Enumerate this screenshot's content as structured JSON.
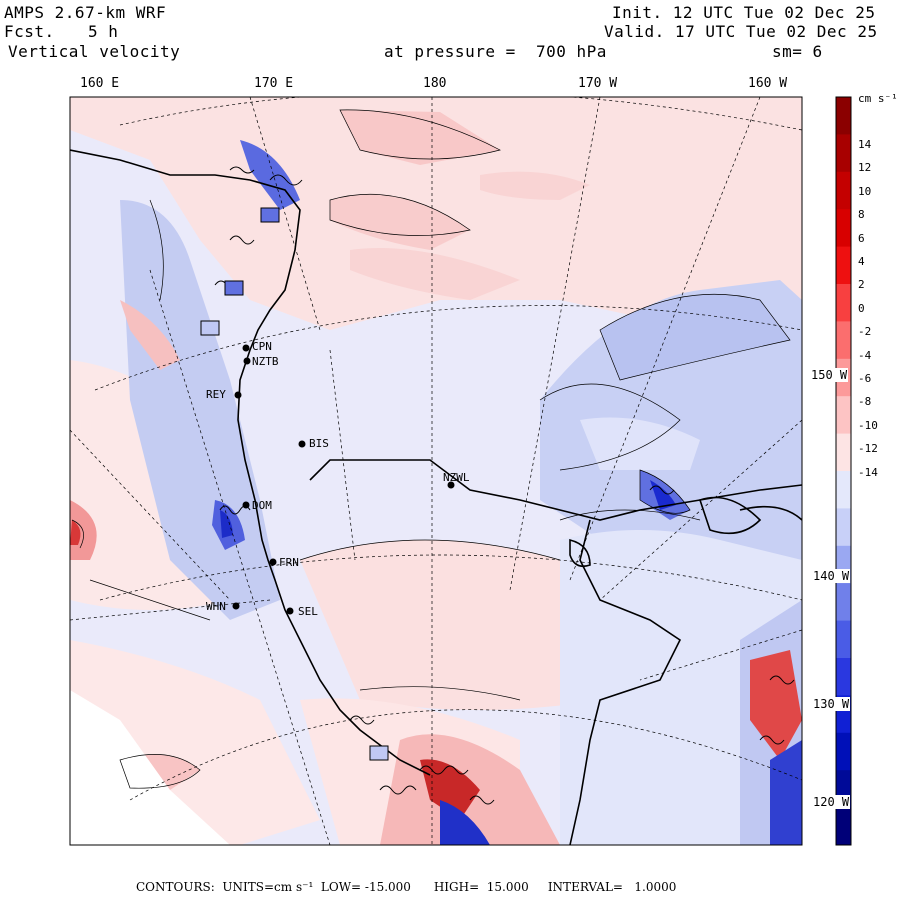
{
  "header": {
    "model": "AMPS 2.67-km WRF",
    "fcst_label": "Fcst.",
    "fcst_value": "5 h",
    "field": "Vertical velocity",
    "init": "Init. 12 UTC Tue 02 Dec 25",
    "valid": "Valid. 17 UTC Tue 02 Dec 25",
    "pressure": "at pressure =  700 hPa",
    "smooth": "sm= 6"
  },
  "lon_labels": [
    "160 E",
    "170 E",
    "180",
    "170 W",
    "160 W"
  ],
  "lat_labels": [
    "150 W",
    "140 W",
    "130 W",
    "120 W"
  ],
  "colorbar": {
    "units": "cm s⁻¹",
    "ticks": [
      "14",
      "12",
      "10",
      "8",
      "6",
      "4",
      "2",
      "0",
      "-2",
      "-4",
      "-6",
      "-8",
      "-10",
      "-12",
      "-14"
    ],
    "colors": [
      "#8b0000",
      "#a80000",
      "#c40000",
      "#d80000",
      "#ee1010",
      "#f84040",
      "#fb6e6e",
      "#fc9a9a",
      "#fdc4c4",
      "#fde4e4",
      "#e4e8fb",
      "#c8d0f8",
      "#9aa8f2",
      "#7080ea",
      "#4a5ce6",
      "#2a38e0",
      "#1020d4",
      "#0010b8",
      "#000a98",
      "#000078"
    ]
  },
  "stations": [
    {
      "name": "CPN"
    },
    {
      "name": "NZTB"
    },
    {
      "name": "REY"
    },
    {
      "name": "BIS"
    },
    {
      "name": "NZWL"
    },
    {
      "name": "DOM"
    },
    {
      "name": "FRN"
    },
    {
      "name": "WHN"
    },
    {
      "name": "SEL"
    }
  ],
  "footer": {
    "contours": "CONTOURS:  UNITS=cm s⁻¹  LOW= -15.000      HIGH=  15.000     INTERVAL=   1.0000"
  }
}
